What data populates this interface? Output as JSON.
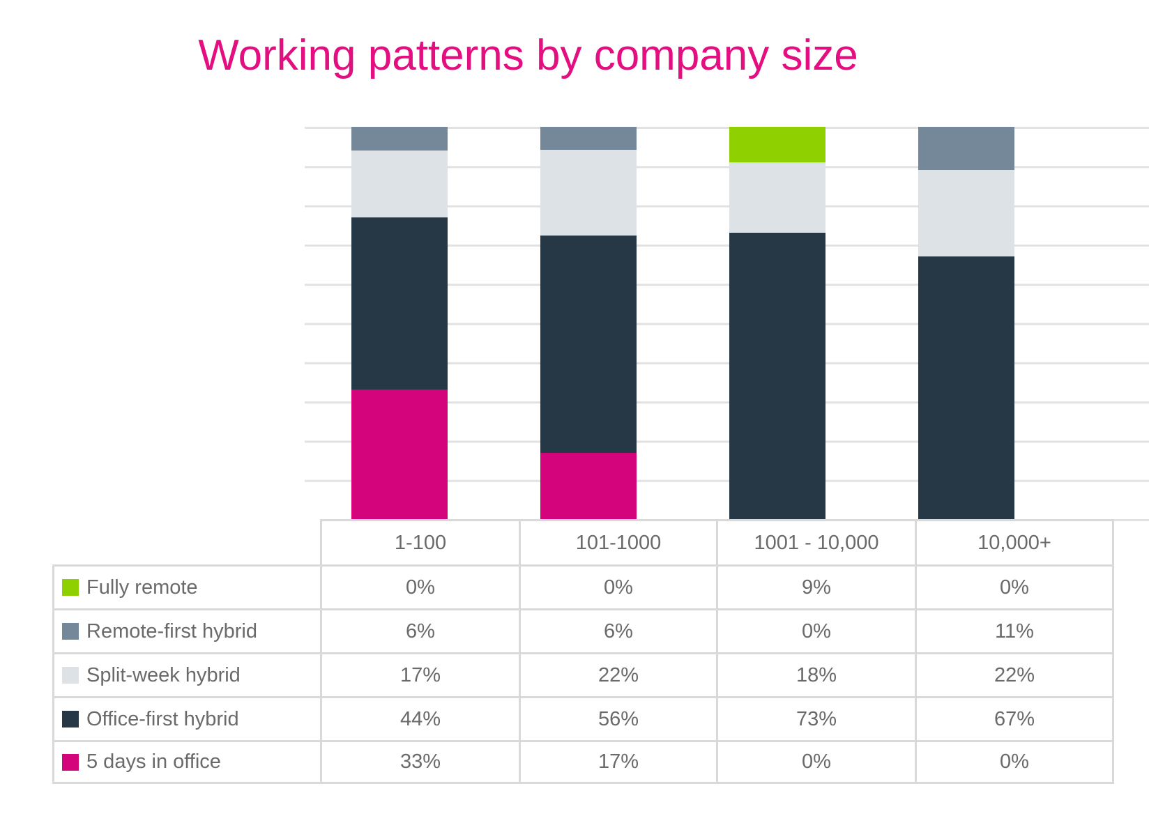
{
  "title": {
    "text": "Working patterns by company size",
    "color": "#e30e80"
  },
  "chart_data": {
    "type": "bar",
    "stacked": true,
    "unit": "percent",
    "title": "Working patterns by company size",
    "xlabel": "",
    "ylabel": "",
    "ylim": [
      0,
      100
    ],
    "gridline_step": 10,
    "grid": true,
    "legend_position": "table-left",
    "categories": [
      "1-100",
      "101-1000",
      "1001 - 10,000",
      "10,000+"
    ],
    "series": [
      {
        "name": "Fully remote",
        "color": "#8ed000",
        "values": [
          0,
          0,
          9,
          0
        ]
      },
      {
        "name": "Remote-first hybrid",
        "color": "#74889a",
        "values": [
          6,
          6,
          0,
          11
        ]
      },
      {
        "name": "Split-week hybrid",
        "color": "#dde2e7",
        "values": [
          17,
          22,
          18,
          22
        ]
      },
      {
        "name": "Office-first hybrid",
        "color": "#263746",
        "values": [
          44,
          56,
          73,
          67
        ]
      },
      {
        "name": "5 days in office",
        "color": "#d4047c",
        "values": [
          33,
          17,
          0,
          0
        ]
      }
    ],
    "stack_order_bottom_to_top": [
      "5 days in office",
      "Office-first hybrid",
      "Split-week hybrid",
      "Remote-first hybrid",
      "Fully remote"
    ]
  },
  "table": {
    "column_headers": [
      "1-100",
      "101-1000",
      "1001 - 10,000",
      "10,000+"
    ],
    "rows": [
      {
        "label": "Fully remote",
        "swatch": "#8ed000",
        "values": [
          "0%",
          "0%",
          "9%",
          "0%"
        ]
      },
      {
        "label": "Remote-first hybrid",
        "swatch": "#74889a",
        "values": [
          "6%",
          "6%",
          "0%",
          "11%"
        ]
      },
      {
        "label": "Split-week hybrid",
        "swatch": "#dde2e7",
        "values": [
          "17%",
          "22%",
          "18%",
          "22%"
        ]
      },
      {
        "label": "Office-first hybrid",
        "swatch": "#263746",
        "values": [
          "44%",
          "56%",
          "73%",
          "67%"
        ]
      },
      {
        "label": "5 days in office",
        "swatch": "#d4047c",
        "values": [
          "33%",
          "17%",
          "0%",
          "0%"
        ]
      }
    ]
  },
  "colors": {
    "gridline": "#e2e2e2",
    "table_border": "#d9d9d9",
    "text": "#6a6a6a"
  }
}
